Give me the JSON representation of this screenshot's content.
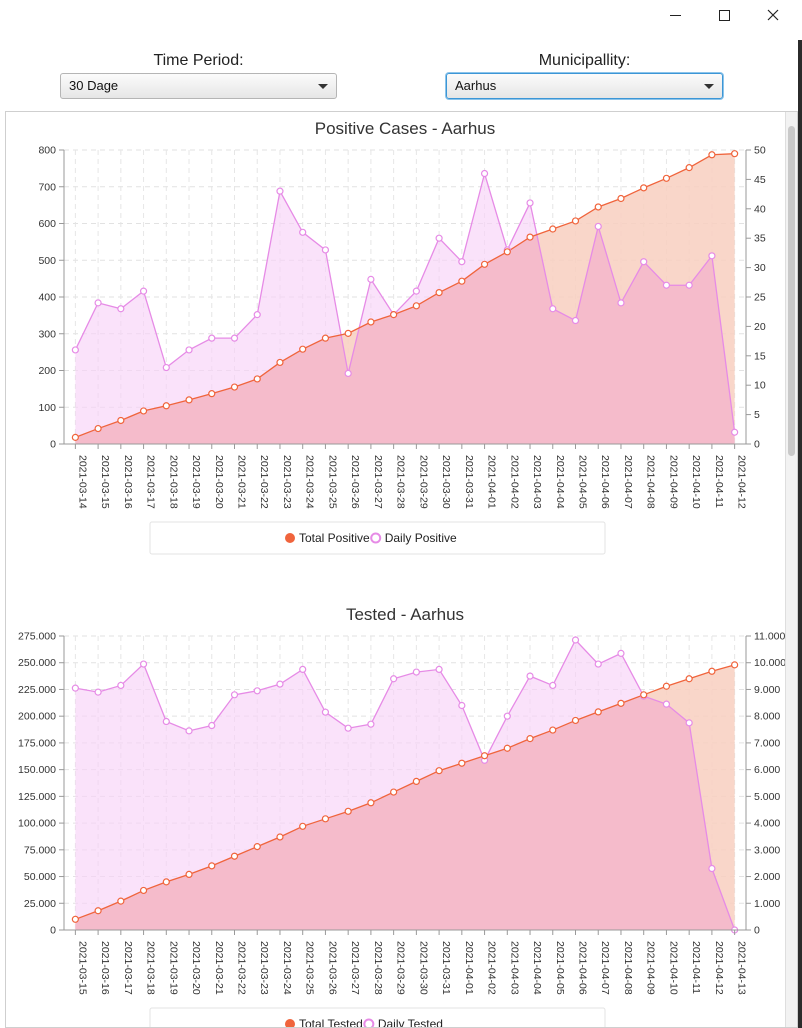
{
  "window": {
    "minimize_glyph": "—",
    "maximize_glyph": "☐",
    "close_glyph": "✕"
  },
  "controls": {
    "time_period_label": "Time Period:",
    "time_period_value": "30 Dage",
    "municipality_label": "Municipallity:",
    "municipality_value": "Aarhus"
  },
  "colors": {
    "total": "#f0643c",
    "daily": "#e68be6",
    "total_fill": "#f8cfc0",
    "daily_fill": "#f7d2f7",
    "overlap_fill": "#f4b8c8"
  },
  "chart_data": [
    {
      "type": "area",
      "title": "Positive Cases - Aarhus",
      "x": [
        "2021-03-14",
        "2021-03-15",
        "2021-03-16",
        "2021-03-17",
        "2021-03-18",
        "2021-03-19",
        "2021-03-20",
        "2021-03-21",
        "2021-03-22",
        "2021-03-23",
        "2021-03-24",
        "2021-03-25",
        "2021-03-26",
        "2021-03-27",
        "2021-03-28",
        "2021-03-29",
        "2021-03-30",
        "2021-03-31",
        "2021-04-01",
        "2021-04-02",
        "2021-04-03",
        "2021-04-04",
        "2021-04-05",
        "2021-04-06",
        "2021-04-07",
        "2021-04-08",
        "2021-04-09",
        "2021-04-10",
        "2021-04-11",
        "2021-04-12"
      ],
      "series": [
        {
          "name": "Total Positive",
          "axis": "left",
          "values": [
            18,
            42,
            64,
            90,
            104,
            120,
            137,
            155,
            177,
            222,
            258,
            288,
            301,
            332,
            352,
            376,
            412,
            443,
            489,
            523,
            563,
            585,
            607,
            645,
            668,
            697,
            723,
            752,
            787,
            790
          ]
        },
        {
          "name": "Daily Positive",
          "axis": "right",
          "values": [
            16,
            24,
            23,
            26,
            13,
            16,
            18,
            18,
            22,
            43,
            36,
            33,
            12,
            28,
            22,
            26,
            35,
            31,
            46,
            33,
            41,
            23,
            21,
            37,
            24,
            31,
            27,
            27,
            32,
            2
          ]
        }
      ],
      "y_left": {
        "min": 0,
        "max": 800,
        "ticks": [
          "0",
          "100",
          "200",
          "300",
          "400",
          "500",
          "600",
          "700",
          "800"
        ]
      },
      "y_right": {
        "min": 0,
        "max": 50,
        "ticks": [
          "0",
          "5",
          "10",
          "15",
          "20",
          "25",
          "30",
          "35",
          "40",
          "45",
          "50"
        ]
      },
      "grid": true,
      "legend": "bottom"
    },
    {
      "type": "area",
      "title": "Tested - Aarhus",
      "x": [
        "2021-03-15",
        "2021-03-16",
        "2021-03-17",
        "2021-03-18",
        "2021-03-19",
        "2021-03-20",
        "2021-03-21",
        "2021-03-22",
        "2021-03-23",
        "2021-03-24",
        "2021-03-25",
        "2021-03-26",
        "2021-03-27",
        "2021-03-28",
        "2021-03-29",
        "2021-03-30",
        "2021-03-31",
        "2021-04-01",
        "2021-04-02",
        "2021-04-03",
        "2021-04-04",
        "2021-04-05",
        "2021-04-06",
        "2021-04-07",
        "2021-04-08",
        "2021-04-09",
        "2021-04-10",
        "2021-04-11",
        "2021-04-12",
        "2021-04-13"
      ],
      "series": [
        {
          "name": "Total Tested",
          "axis": "left",
          "values": [
            10000,
            18000,
            27000,
            37000,
            45000,
            52000,
            60000,
            69000,
            78000,
            87000,
            97000,
            104000,
            111000,
            119000,
            129000,
            139000,
            149000,
            156000,
            163000,
            170000,
            179000,
            187000,
            196000,
            204000,
            212000,
            220000,
            228000,
            235000,
            242000,
            248000
          ]
        },
        {
          "name": "Daily Tested",
          "axis": "right",
          "values": [
            9050,
            8900,
            9150,
            9950,
            7800,
            7450,
            7650,
            8800,
            8950,
            9200,
            9750,
            8150,
            7550,
            7700,
            9400,
            9650,
            9750,
            8400,
            6350,
            8000,
            9500,
            9150,
            10850,
            9950,
            10350,
            8750,
            8450,
            7750,
            2300,
            0
          ]
        }
      ],
      "y_left": {
        "min": 0,
        "max": 275000,
        "ticks": [
          "0",
          "25.000",
          "50.000",
          "75.000",
          "100.000",
          "125.000",
          "150.000",
          "175.000",
          "200.000",
          "225.000",
          "250.000",
          "275.000"
        ]
      },
      "y_right": {
        "min": 0,
        "max": 11000,
        "ticks": [
          "0",
          "1.000",
          "2.000",
          "3.000",
          "4.000",
          "5.000",
          "6.000",
          "7.000",
          "8.000",
          "9.000",
          "10.000",
          "11.000"
        ]
      },
      "grid": true,
      "legend": "bottom"
    }
  ]
}
